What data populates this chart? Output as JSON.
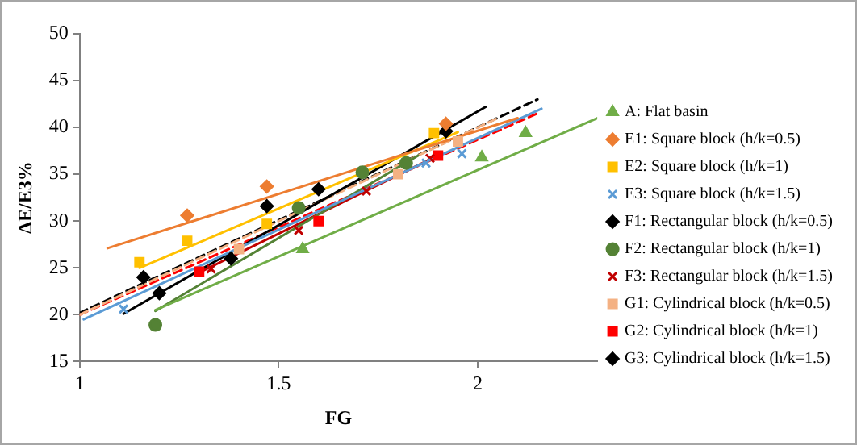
{
  "chart_data": {
    "type": "scatter",
    "xlabel": "FG",
    "ylabel": "ΔE/E3%",
    "xlim": [
      1,
      2.3
    ],
    "xticks": [
      1,
      1.5,
      2
    ],
    "ylim": [
      15,
      50
    ],
    "yticks": [
      15,
      20,
      25,
      30,
      35,
      40,
      45,
      50
    ],
    "grid": false,
    "legend": "right",
    "series": [
      {
        "name": "A: Flat basin",
        "color": "#70ad47",
        "marker": "triangle",
        "x": [
          1.56,
          2.01,
          2.12
        ],
        "values": [
          27.0,
          36.8,
          39.4
        ]
      },
      {
        "name": "E1: Square block (h/k=0.5)",
        "color": "#ed7d31",
        "marker": "diamond",
        "x": [
          1.27,
          1.47,
          1.92
        ],
        "values": [
          30.6,
          33.7,
          40.4
        ]
      },
      {
        "name": "E2: Square block (h/k=1)",
        "color": "#ffc000",
        "marker": "square",
        "x": [
          1.15,
          1.27,
          1.47,
          1.89
        ],
        "values": [
          25.6,
          27.9,
          29.7,
          39.4
        ]
      },
      {
        "name": "E3: Square block (h/k=1.5)",
        "color": "#5b9bd5",
        "marker": "cross",
        "x": [
          1.11,
          1.87,
          1.96
        ],
        "values": [
          20.6,
          36.2,
          37.2
        ]
      },
      {
        "name": "F1: Rectangular block (h/k=0.5)",
        "color": "#000000",
        "marker": "diamond",
        "x": [
          1.16,
          1.47,
          1.6,
          1.92
        ],
        "values": [
          24.0,
          31.6,
          33.4,
          39.6
        ]
      },
      {
        "name": "F2: Rectangular block (h/k=1)",
        "color": "#548235",
        "marker": "circle",
        "x": [
          1.19,
          1.55,
          1.71,
          1.82
        ],
        "values": [
          18.9,
          31.4,
          35.2,
          36.2
        ]
      },
      {
        "name": "F3: Rectangular block (h/k=1.5)",
        "color": "#c00000",
        "marker": "cross",
        "x": [
          1.33,
          1.55,
          1.72,
          1.88
        ],
        "values": [
          24.9,
          29.0,
          33.2,
          36.7
        ]
      },
      {
        "name": "G1: Cylindrical block (h/k=0.5)",
        "color": "#f4b183",
        "marker": "square",
        "x": [
          1.4,
          1.8,
          1.95
        ],
        "values": [
          27.0,
          35.0,
          38.5
        ]
      },
      {
        "name": "G2: Cylindrical block (h/k=1)",
        "color": "#ff0000",
        "marker": "square",
        "x": [
          1.3,
          1.6,
          1.9
        ],
        "values": [
          24.6,
          30.0,
          37.0
        ]
      },
      {
        "name": "G3: Cylindrical block (h/k=1.5)",
        "color": "#000000",
        "marker": "diamond",
        "x": [
          1.2,
          1.38
        ],
        "values": [
          22.3,
          26.0
        ]
      },
      {
        "type": "line",
        "color": "#70ad47",
        "marker": "none",
        "line_style": "solid",
        "x": [
          1.19,
          2.3
        ],
        "values": [
          20.5,
          41.0
        ]
      },
      {
        "type": "line",
        "color": "#ed7d31",
        "marker": "none",
        "line_style": "solid",
        "x": [
          1.07,
          2.1
        ],
        "values": [
          27.1,
          41.0
        ]
      },
      {
        "type": "line",
        "color": "#ffc000",
        "marker": "none",
        "line_style": "solid",
        "x": [
          1.15,
          1.95
        ],
        "values": [
          25.0,
          39.5
        ]
      },
      {
        "type": "line",
        "color": "#5b9bd5",
        "marker": "none",
        "line_style": "solid",
        "x": [
          1.01,
          2.16
        ],
        "values": [
          19.5,
          42.0
        ]
      },
      {
        "type": "line",
        "color": "#000000",
        "marker": "none",
        "line_style": "solid",
        "x": [
          1.11,
          2.02
        ],
        "values": [
          20.1,
          42.2
        ]
      },
      {
        "type": "line",
        "color": "#548235",
        "marker": "none",
        "line_style": "solid",
        "x": [
          1.19,
          1.85
        ],
        "values": [
          20.4,
          37.0
        ]
      },
      {
        "type": "line",
        "color": "#c00000",
        "marker": "none",
        "line_style": "solid",
        "x": [
          1.3,
          1.9
        ],
        "values": [
          24.5,
          37.0
        ]
      },
      {
        "type": "line",
        "color": "#f4b183",
        "marker": "none",
        "line_style": "dashed",
        "x": [
          1.0,
          2.05
        ],
        "values": [
          20.0,
          41.0
        ]
      },
      {
        "type": "line",
        "color": "#ff0000",
        "marker": "none",
        "line_style": "dashed",
        "x": [
          1.0,
          2.15
        ],
        "values": [
          20.0,
          41.5
        ]
      },
      {
        "type": "line",
        "color": "#000000",
        "marker": "none",
        "line_style": "dashed",
        "x": [
          1.0,
          2.15
        ],
        "values": [
          20.2,
          43.0
        ]
      }
    ]
  }
}
